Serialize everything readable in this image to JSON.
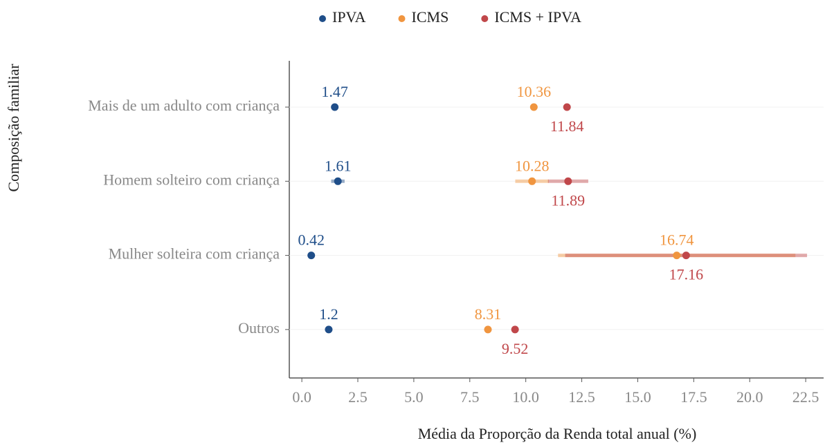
{
  "chart_data": {
    "type": "dot",
    "title_x": "Média da Proporção da Renda total anual (%)",
    "title_y": "Composição familiar",
    "categories": [
      "Mais de um adulto com criança",
      "Homem solteiro com criança",
      "Mulher solteira com criança",
      "Outros"
    ],
    "series": [
      {
        "name": "IPVA",
        "color": "#1f4e89",
        "values": [
          1.47,
          1.61,
          0.42,
          1.2
        ],
        "errors": [
          null,
          0.3,
          null,
          null
        ],
        "label_side": "above"
      },
      {
        "name": "ICMS",
        "color": "#f0953f",
        "values": [
          10.36,
          10.28,
          16.74,
          8.31
        ],
        "errors": [
          null,
          0.75,
          5.3,
          null
        ],
        "label_side": "above"
      },
      {
        "name": "ICMS + IPVA",
        "color": "#c0474a",
        "values": [
          11.84,
          11.89,
          17.16,
          9.52
        ],
        "errors": [
          null,
          0.9,
          5.4,
          null
        ],
        "label_side": "below"
      }
    ],
    "xlim": [
      -0.56,
      23.3
    ],
    "xticks": [
      {
        "value": 0,
        "label": "0.0"
      },
      2.5,
      {
        "value": 5,
        "label": "5.0"
      },
      7.5,
      {
        "value": 10,
        "label": "10.0"
      },
      12.5,
      {
        "value": 15,
        "label": "15.0"
      },
      17.5,
      {
        "value": 20,
        "label": "20.0"
      },
      22.5
    ],
    "grid": true,
    "legend": "top"
  }
}
